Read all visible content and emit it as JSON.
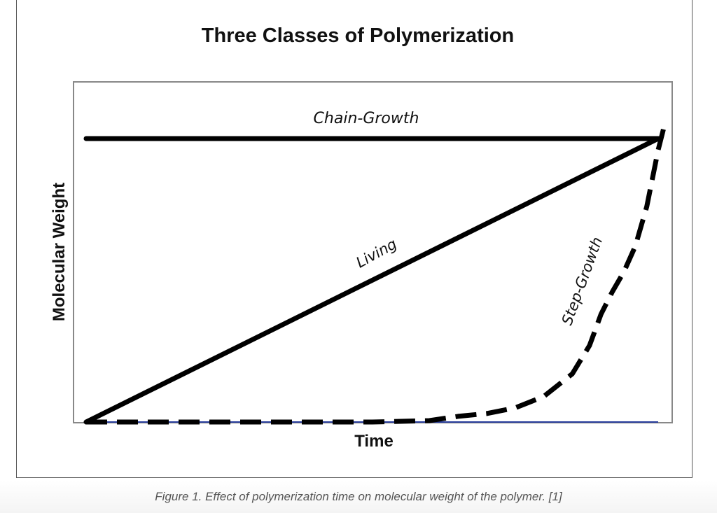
{
  "chart_data": {
    "type": "line",
    "title": "Three Classes of Polymerization",
    "xlabel": "Time",
    "ylabel": "Molecular Weight",
    "xlim": [
      0,
      1
    ],
    "ylim": [
      0,
      1.1
    ],
    "grid": false,
    "axis_ticks": false,
    "series": [
      {
        "name": "Chain-Growth",
        "style": "solid",
        "color": "#000000",
        "x": [
          0,
          1
        ],
        "y": [
          1,
          1
        ]
      },
      {
        "name": "Living",
        "style": "solid",
        "color": "#000000",
        "x": [
          0,
          1
        ],
        "y": [
          0,
          1
        ]
      },
      {
        "name": "Step-Growth",
        "style": "dashed",
        "color": "#000000",
        "x": [
          0,
          0.3,
          0.5,
          0.6,
          0.65,
          0.7,
          0.75,
          0.8,
          0.85,
          0.88,
          0.9,
          0.92,
          0.94,
          0.96,
          0.98,
          1.0,
          1.01
        ],
        "y": [
          0,
          0,
          0.0,
          0.005,
          0.02,
          0.03,
          0.05,
          0.09,
          0.17,
          0.27,
          0.38,
          0.46,
          0.53,
          0.62,
          0.76,
          0.96,
          1.04
        ]
      }
    ],
    "baseline": {
      "color": "#2a3f9e",
      "y": 0
    }
  },
  "caption": "Figure 1. Effect of polymerization time on molecular weight of the polymer. [1]"
}
